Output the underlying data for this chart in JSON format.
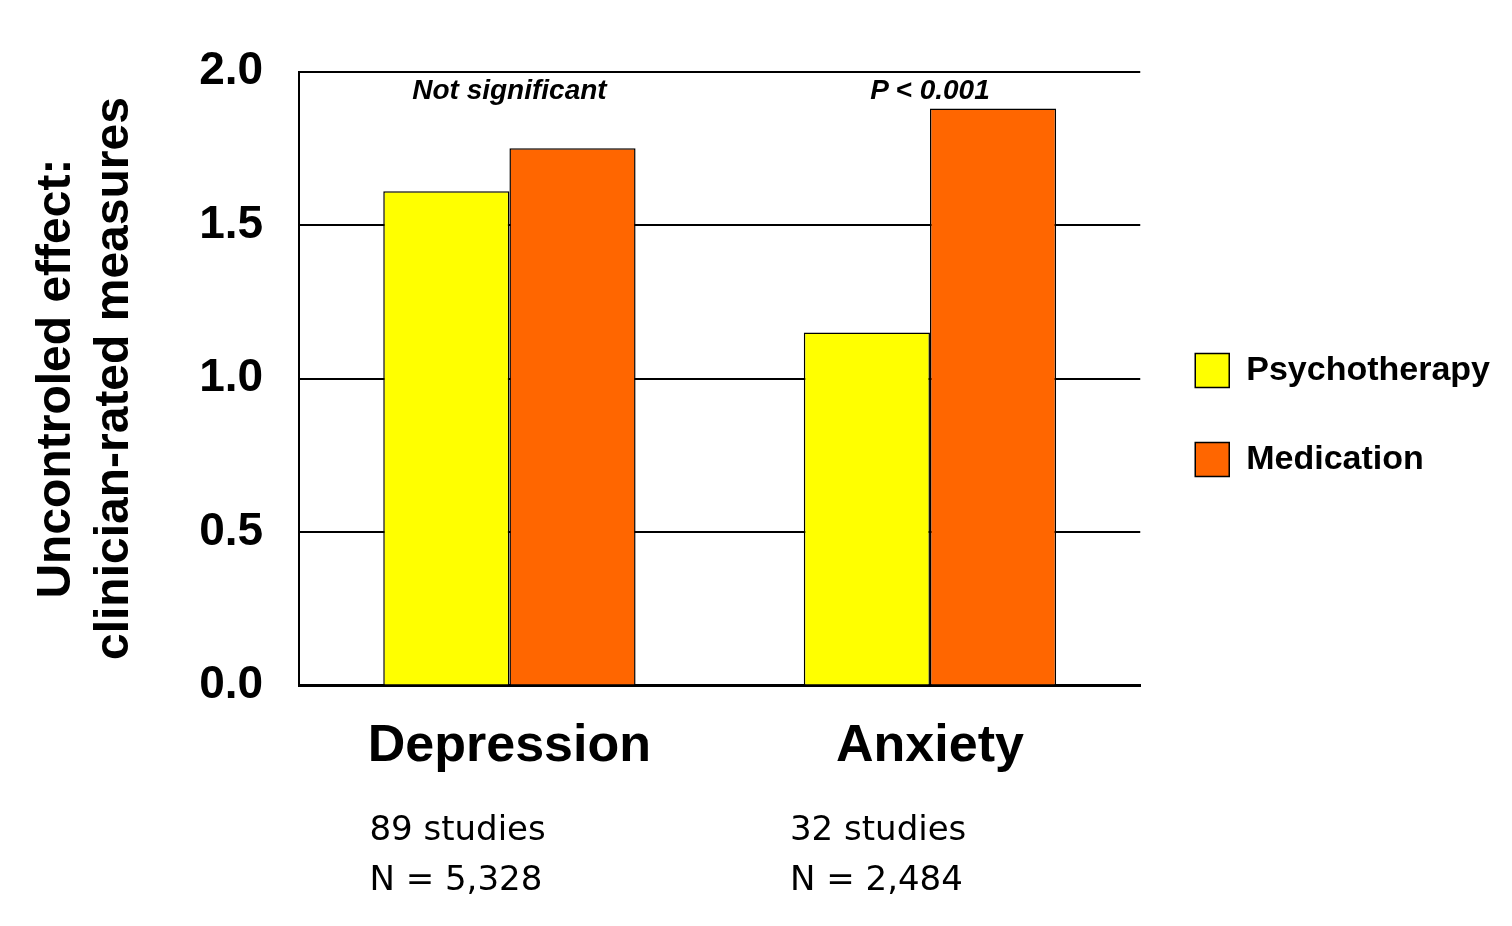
{
  "chart_data": {
    "type": "bar",
    "ylabel": "Uncontroled effect:\nclinician-rated measures",
    "categories": [
      "Depression",
      "Anxiety"
    ],
    "series": [
      {
        "name": "Psychotherapy",
        "color": "#ffff00",
        "values": [
          1.61,
          1.15
        ]
      },
      {
        "name": "Medication",
        "color": "#ff6600",
        "values": [
          1.75,
          1.88
        ]
      }
    ],
    "ylim": [
      0,
      2
    ],
    "yticks": [
      {
        "value": 0,
        "label": "0.0"
      },
      {
        "value": 0.5,
        "label": "0.5"
      },
      {
        "value": 1,
        "label": "1.0"
      },
      {
        "value": 1.5,
        "label": "1.5"
      },
      {
        "value": 2,
        "label": "2.0"
      }
    ],
    "grid": "y",
    "legend": "right",
    "annotations": [
      "Not significant",
      "P < 0.001",
      "89 studies\nN = 5,328",
      "32 studies\nN = 2,484"
    ]
  }
}
